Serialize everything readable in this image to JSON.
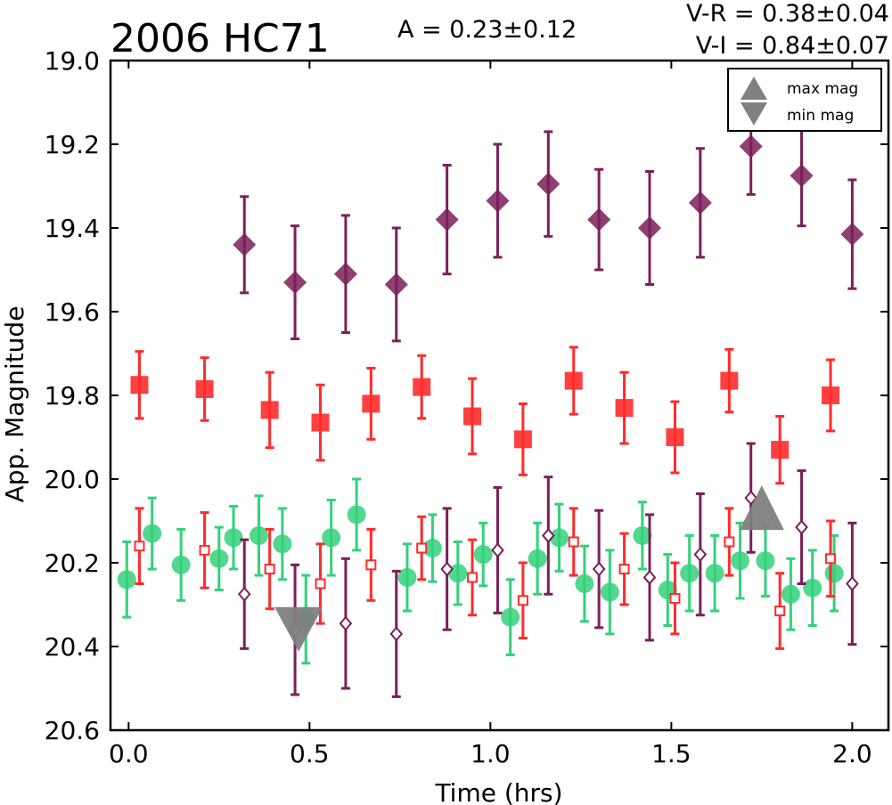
{
  "chart_data": {
    "type": "scatter",
    "title": "2006 HC71",
    "annotations": {
      "amplitude": "A  = 0.23±0.12",
      "v_r": "V-R = 0.38±0.04",
      "v_i": "V-I  = 0.84±0.07"
    },
    "xlabel": "Time (hrs)",
    "ylabel": "App. Magnitude",
    "xlim": [
      -0.05,
      2.1
    ],
    "ylim": [
      20.6,
      19.0
    ],
    "y_inverted": true,
    "xticks": [
      "0.0",
      "0.5",
      "1.0",
      "1.5",
      "2.0"
    ],
    "xtick_values": [
      0.0,
      0.5,
      1.0,
      1.5,
      2.0
    ],
    "yticks": [
      "19.0",
      "19.2",
      "19.4",
      "19.6",
      "19.8",
      "20.0",
      "20.2",
      "20.4",
      "20.6"
    ],
    "ytick_values": [
      19.0,
      19.2,
      19.4,
      19.6,
      19.8,
      20.0,
      20.2,
      20.4,
      20.6
    ],
    "grid": false,
    "legend": {
      "position": "top-right",
      "items": [
        {
          "label": "max mag",
          "marker": "triangle-up",
          "color": "#808080"
        },
        {
          "label": "min mag",
          "marker": "triangle-down",
          "color": "#808080"
        }
      ]
    },
    "series": [
      {
        "marker": "filled-diamond",
        "color": "#7b1f5a",
        "points": [
          {
            "x": 0.32,
            "y": 19.44,
            "err": 0.115
          },
          {
            "x": 0.46,
            "y": 19.53,
            "err": 0.135
          },
          {
            "x": 0.6,
            "y": 19.51,
            "err": 0.14
          },
          {
            "x": 0.74,
            "y": 19.535,
            "err": 0.135
          },
          {
            "x": 0.88,
            "y": 19.38,
            "err": 0.13
          },
          {
            "x": 1.02,
            "y": 19.335,
            "err": 0.135
          },
          {
            "x": 1.16,
            "y": 19.295,
            "err": 0.125
          },
          {
            "x": 1.3,
            "y": 19.38,
            "err": 0.12
          },
          {
            "x": 1.44,
            "y": 19.4,
            "err": 0.135
          },
          {
            "x": 1.58,
            "y": 19.34,
            "err": 0.13
          },
          {
            "x": 1.72,
            "y": 19.205,
            "err": 0.115
          },
          {
            "x": 1.86,
            "y": 19.275,
            "err": 0.12
          },
          {
            "x": 2.0,
            "y": 19.415,
            "err": 0.13
          }
        ]
      },
      {
        "marker": "filled-square",
        "color": "#ff2b2b",
        "points": [
          {
            "x": 0.03,
            "y": 19.775,
            "err": 0.08
          },
          {
            "x": 0.21,
            "y": 19.785,
            "err": 0.075
          },
          {
            "x": 0.39,
            "y": 19.835,
            "err": 0.09
          },
          {
            "x": 0.53,
            "y": 19.865,
            "err": 0.09
          },
          {
            "x": 0.67,
            "y": 19.82,
            "err": 0.085
          },
          {
            "x": 0.81,
            "y": 19.78,
            "err": 0.075
          },
          {
            "x": 0.95,
            "y": 19.85,
            "err": 0.09
          },
          {
            "x": 1.09,
            "y": 19.905,
            "err": 0.085
          },
          {
            "x": 1.23,
            "y": 19.765,
            "err": 0.08
          },
          {
            "x": 1.37,
            "y": 19.83,
            "err": 0.085
          },
          {
            "x": 1.51,
            "y": 19.9,
            "err": 0.085
          },
          {
            "x": 1.66,
            "y": 19.765,
            "err": 0.075
          },
          {
            "x": 1.8,
            "y": 19.93,
            "err": 0.08
          },
          {
            "x": 1.94,
            "y": 19.8,
            "err": 0.085
          }
        ]
      },
      {
        "marker": "filled-circle",
        "color": "#33d17a",
        "points": [
          {
            "x": -0.005,
            "y": 20.24,
            "err": 0.09
          },
          {
            "x": 0.065,
            "y": 20.13,
            "err": 0.085
          },
          {
            "x": 0.145,
            "y": 20.205,
            "err": 0.085
          },
          {
            "x": 0.25,
            "y": 20.19,
            "err": 0.075
          },
          {
            "x": 0.29,
            "y": 20.14,
            "err": 0.075
          },
          {
            "x": 0.36,
            "y": 20.135,
            "err": 0.095
          },
          {
            "x": 0.425,
            "y": 20.155,
            "err": 0.085
          },
          {
            "x": 0.49,
            "y": 20.335,
            "err": 0.105
          },
          {
            "x": 0.56,
            "y": 20.14,
            "err": 0.09
          },
          {
            "x": 0.63,
            "y": 20.085,
            "err": 0.085
          },
          {
            "x": 0.77,
            "y": 20.235,
            "err": 0.08
          },
          {
            "x": 0.84,
            "y": 20.165,
            "err": 0.08
          },
          {
            "x": 0.91,
            "y": 20.225,
            "err": 0.075
          },
          {
            "x": 0.98,
            "y": 20.18,
            "err": 0.075
          },
          {
            "x": 1.055,
            "y": 20.33,
            "err": 0.09
          },
          {
            "x": 1.13,
            "y": 20.19,
            "err": 0.085
          },
          {
            "x": 1.19,
            "y": 20.14,
            "err": 0.08
          },
          {
            "x": 1.26,
            "y": 20.25,
            "err": 0.09
          },
          {
            "x": 1.33,
            "y": 20.27,
            "err": 0.1
          },
          {
            "x": 1.42,
            "y": 20.135,
            "err": 0.08
          },
          {
            "x": 1.49,
            "y": 20.265,
            "err": 0.085
          },
          {
            "x": 1.55,
            "y": 20.225,
            "err": 0.09
          },
          {
            "x": 1.62,
            "y": 20.225,
            "err": 0.09
          },
          {
            "x": 1.69,
            "y": 20.195,
            "err": 0.09
          },
          {
            "x": 1.76,
            "y": 20.195,
            "err": 0.085
          },
          {
            "x": 1.83,
            "y": 20.275,
            "err": 0.085
          },
          {
            "x": 1.89,
            "y": 20.26,
            "err": 0.09
          },
          {
            "x": 1.95,
            "y": 20.225,
            "err": 0.09
          }
        ]
      },
      {
        "marker": "open-square",
        "color": "#ff2b2b",
        "points": [
          {
            "x": 0.03,
            "y": 20.16,
            "err": 0.09
          },
          {
            "x": 0.21,
            "y": 20.17,
            "err": 0.09
          },
          {
            "x": 0.39,
            "y": 20.215,
            "err": 0.095
          },
          {
            "x": 0.53,
            "y": 20.25,
            "err": 0.095
          },
          {
            "x": 0.67,
            "y": 20.205,
            "err": 0.085
          },
          {
            "x": 0.81,
            "y": 20.165,
            "err": 0.075
          },
          {
            "x": 0.95,
            "y": 20.235,
            "err": 0.09
          },
          {
            "x": 1.09,
            "y": 20.29,
            "err": 0.09
          },
          {
            "x": 1.23,
            "y": 20.15,
            "err": 0.08
          },
          {
            "x": 1.37,
            "y": 20.215,
            "err": 0.085
          },
          {
            "x": 1.51,
            "y": 20.285,
            "err": 0.085
          },
          {
            "x": 1.66,
            "y": 20.15,
            "err": 0.08
          },
          {
            "x": 1.8,
            "y": 20.315,
            "err": 0.09
          },
          {
            "x": 1.94,
            "y": 20.19,
            "err": 0.09
          }
        ]
      },
      {
        "marker": "open-diamond",
        "color": "#7b1f5a",
        "points": [
          {
            "x": 0.32,
            "y": 20.275,
            "err": 0.13
          },
          {
            "x": 0.46,
            "y": 20.36,
            "err": 0.155
          },
          {
            "x": 0.6,
            "y": 20.345,
            "err": 0.155
          },
          {
            "x": 0.74,
            "y": 20.37,
            "err": 0.15
          },
          {
            "x": 0.88,
            "y": 20.215,
            "err": 0.145
          },
          {
            "x": 1.02,
            "y": 20.17,
            "err": 0.15
          },
          {
            "x": 1.16,
            "y": 20.135,
            "err": 0.14
          },
          {
            "x": 1.3,
            "y": 20.215,
            "err": 0.14
          },
          {
            "x": 1.44,
            "y": 20.235,
            "err": 0.15
          },
          {
            "x": 1.58,
            "y": 20.18,
            "err": 0.145
          },
          {
            "x": 1.72,
            "y": 20.045,
            "err": 0.13
          },
          {
            "x": 1.86,
            "y": 20.115,
            "err": 0.135
          },
          {
            "x": 2.0,
            "y": 20.25,
            "err": 0.145
          }
        ]
      },
      {
        "marker": "triangle-down",
        "color": "#808080",
        "large": true,
        "points": [
          {
            "x": 0.47,
            "y": 20.34
          }
        ]
      },
      {
        "marker": "triangle-up",
        "color": "#808080",
        "large": true,
        "points": [
          {
            "x": 1.75,
            "y": 20.13
          }
        ]
      }
    ]
  }
}
